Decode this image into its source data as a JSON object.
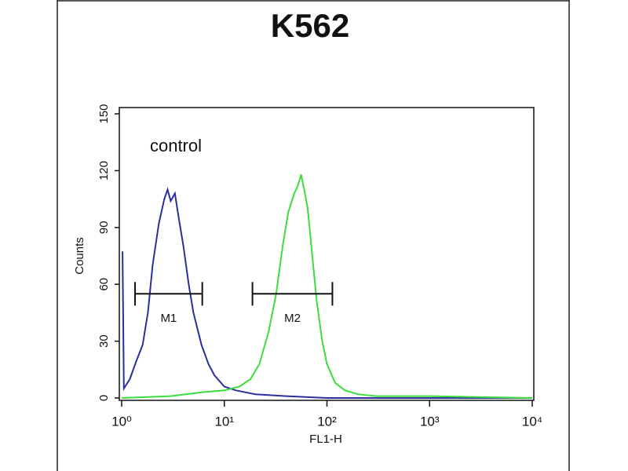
{
  "chart_data": {
    "type": "histogram-line",
    "title": "K562",
    "xlabel": "FL1-H",
    "ylabel": "Counts",
    "xscale": "log",
    "xlim": [
      1,
      10000
    ],
    "xticks": [
      {
        "value": 1,
        "label": "10⁰"
      },
      {
        "value": 10,
        "label": "10¹"
      },
      {
        "value": 100,
        "label": "10²"
      },
      {
        "value": 1000,
        "label": "10³"
      },
      {
        "value": 10000,
        "label": "10⁴"
      }
    ],
    "ylim": [
      0,
      150
    ],
    "yticks": [
      0,
      30,
      60,
      90,
      120,
      150
    ],
    "annotation": "control",
    "series": [
      {
        "color": "#2b2f9e",
        "x": [
          1,
          1.02,
          1.05,
          1.2,
          1.4,
          1.6,
          1.8,
          2.0,
          2.3,
          2.6,
          2.8,
          3.0,
          3.3,
          3.6,
          4.0,
          4.5,
          5.0,
          6.0,
          7.0,
          8.0,
          10,
          13,
          20,
          40,
          100,
          1000,
          10000
        ],
        "values": [
          77,
          77,
          5,
          10,
          20,
          28,
          45,
          70,
          92,
          105,
          110,
          104,
          108,
          95,
          80,
          60,
          45,
          28,
          18,
          12,
          6,
          4,
          2,
          1,
          0,
          0,
          0
        ]
      },
      {
        "color": "#3ddc3d",
        "x": [
          1,
          3,
          6,
          10,
          14,
          18,
          22,
          27,
          32,
          37,
          42,
          48,
          52,
          56,
          60,
          65,
          72,
          80,
          90,
          100,
          120,
          150,
          200,
          300,
          1000,
          10000
        ],
        "values": [
          0,
          1,
          3,
          4,
          6,
          10,
          18,
          35,
          55,
          80,
          98,
          108,
          112,
          118,
          110,
          100,
          75,
          50,
          30,
          18,
          8,
          4,
          2,
          1,
          1,
          0
        ]
      }
    ],
    "markers": [
      {
        "label": "M1",
        "range": [
          1.35,
          6.1
        ],
        "y": 55
      },
      {
        "label": "M2",
        "range": [
          18.8,
          113
        ],
        "y": 55
      }
    ]
  }
}
